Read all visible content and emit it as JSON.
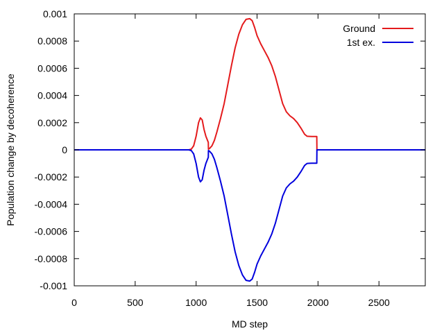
{
  "chart_data": {
    "type": "line",
    "title": "",
    "xlabel": "MD step",
    "ylabel": "Population change by decoherence",
    "xlim": [
      0,
      2880
    ],
    "ylim": [
      -0.001,
      0.001
    ],
    "x_ticks": [
      0,
      500,
      1000,
      1500,
      2000,
      2500
    ],
    "x_tick_labels": [
      "0",
      "500",
      "1000",
      "1500",
      "2000",
      "2500"
    ],
    "y_ticks": [
      0.001,
      0.0008,
      0.0006,
      0.0004,
      0.0002,
      0,
      -0.0002,
      -0.0004,
      -0.0006,
      -0.0008,
      -0.001
    ],
    "y_tick_labels": [
      "0.001",
      "0.0008",
      "0.0006",
      "0.0004",
      "0.0002",
      "0",
      "-0.0002",
      "-0.0004",
      "-0.0006",
      "-0.0008",
      "-0.001"
    ],
    "grid": false,
    "legend_position": "top-right",
    "series": [
      {
        "name": "Ground",
        "color": "#e41a1c",
        "x": [
          0,
          940,
          960,
          980,
          1000,
          1020,
          1035,
          1050,
          1065,
          1080,
          1100,
          1101,
          1110,
          1130,
          1150,
          1170,
          1200,
          1230,
          1260,
          1290,
          1320,
          1350,
          1380,
          1410,
          1440,
          1460,
          1480,
          1500,
          1530,
          1560,
          1590,
          1620,
          1650,
          1680,
          1710,
          1740,
          1770,
          1800,
          1830,
          1860,
          1890,
          1910,
          1930,
          1950,
          1970,
          1990,
          1991,
          2880
        ],
        "y": [
          0,
          0,
          5e-06,
          3e-05,
          0.0001,
          0.0002,
          0.000235,
          0.00022,
          0.00015,
          0.0001,
          5.5e-05,
          5e-06,
          1e-05,
          3e-05,
          7e-05,
          0.00013,
          0.00023,
          0.00034,
          0.00048,
          0.00062,
          0.00075,
          0.00085,
          0.00092,
          0.00096,
          0.000965,
          0.00095,
          0.0009,
          0.00084,
          0.00078,
          0.00073,
          0.00068,
          0.00062,
          0.00054,
          0.00044,
          0.00034,
          0.00028,
          0.00025,
          0.00023,
          0.0002,
          0.00016,
          0.000115,
          0.0001,
          9.9e-05,
          9.8e-05,
          9.8e-05,
          9.8e-05,
          0,
          0
        ]
      },
      {
        "name": "1st ex.",
        "color": "#0000dd",
        "x": [
          0,
          940,
          960,
          980,
          1000,
          1020,
          1035,
          1050,
          1065,
          1080,
          1100,
          1101,
          1110,
          1130,
          1150,
          1170,
          1200,
          1230,
          1260,
          1290,
          1320,
          1350,
          1380,
          1410,
          1440,
          1460,
          1480,
          1500,
          1530,
          1560,
          1590,
          1620,
          1650,
          1680,
          1710,
          1740,
          1770,
          1800,
          1830,
          1860,
          1890,
          1910,
          1930,
          1950,
          1970,
          1990,
          1991,
          2880
        ],
        "y": [
          0,
          0,
          -5e-06,
          -3e-05,
          -0.0001,
          -0.0002,
          -0.000235,
          -0.00022,
          -0.00015,
          -0.0001,
          -5.5e-05,
          -5e-06,
          -1e-05,
          -3e-05,
          -7e-05,
          -0.00013,
          -0.00023,
          -0.00034,
          -0.00048,
          -0.00062,
          -0.00075,
          -0.00085,
          -0.00092,
          -0.00096,
          -0.000965,
          -0.00095,
          -0.0009,
          -0.00084,
          -0.00078,
          -0.00073,
          -0.00068,
          -0.00062,
          -0.00054,
          -0.00044,
          -0.00034,
          -0.00028,
          -0.00025,
          -0.00023,
          -0.0002,
          -0.00016,
          -0.000115,
          -0.0001,
          -9.9e-05,
          -9.8e-05,
          -9.8e-05,
          -9.8e-05,
          0,
          0
        ]
      }
    ]
  }
}
